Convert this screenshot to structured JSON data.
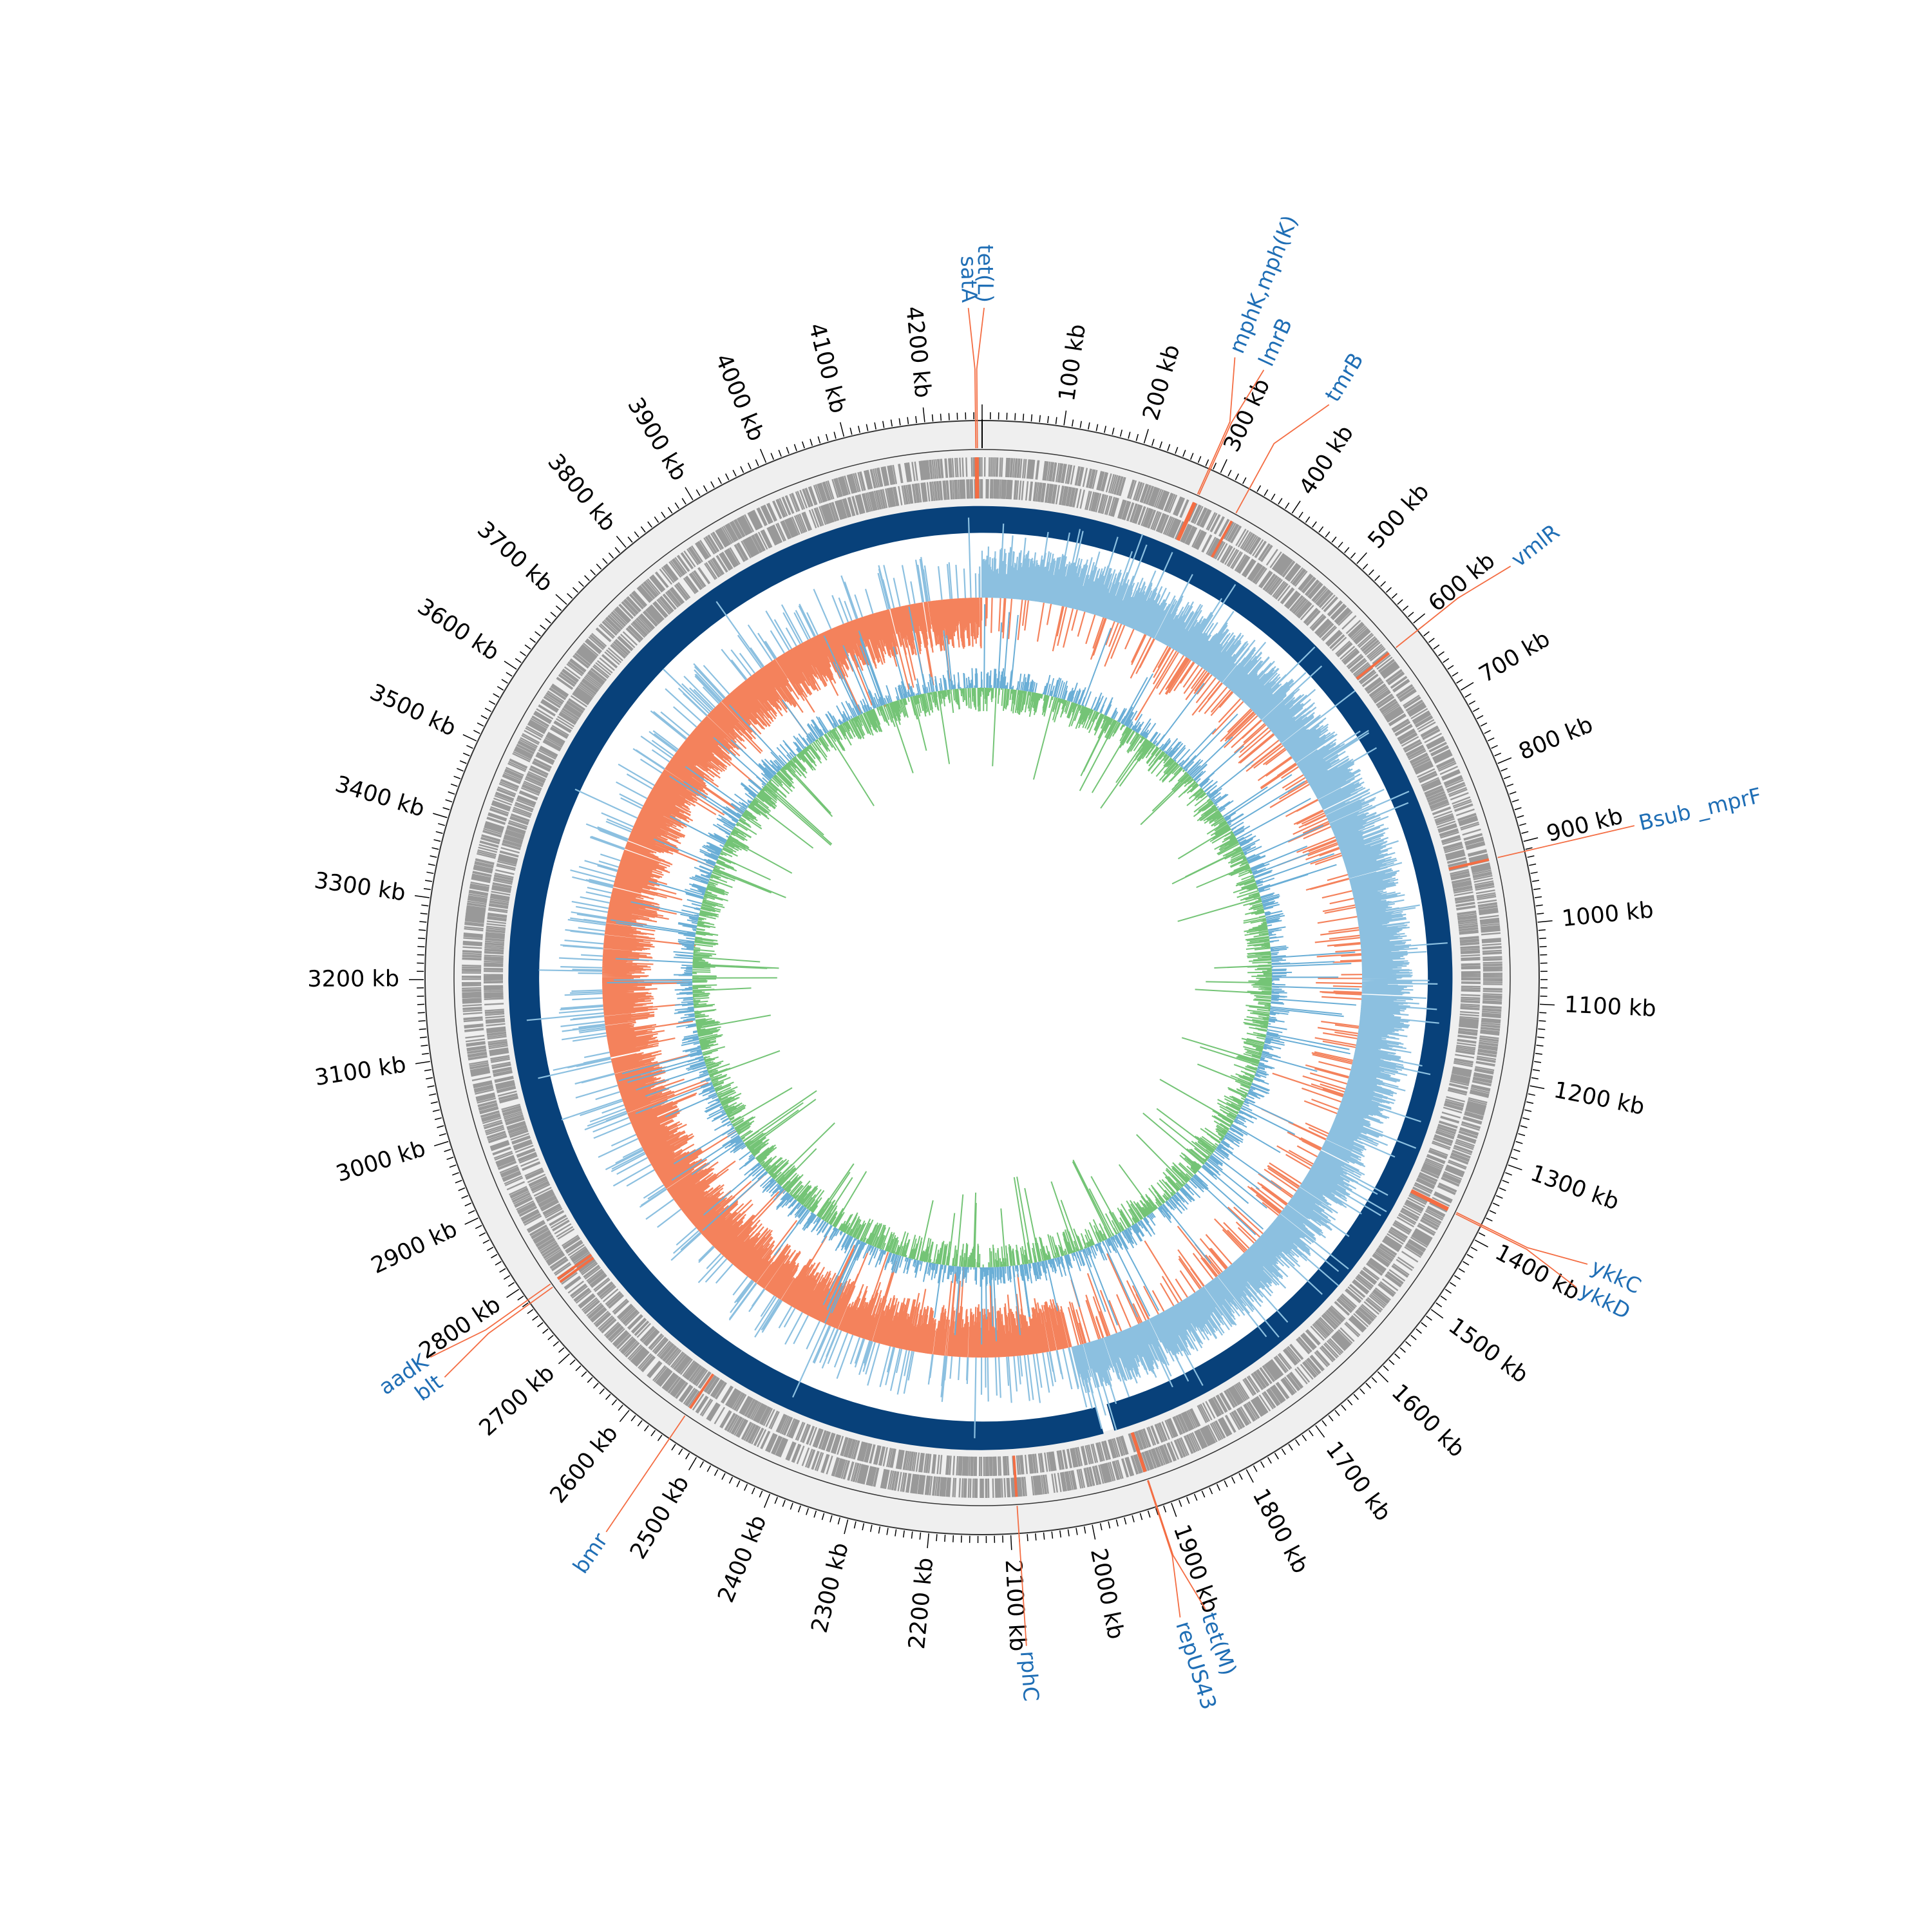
{
  "genome": {
    "length_kb": 4270,
    "tick_unit": "kb",
    "major_tick_step_kb": 100,
    "minor_tick_step_kb": 10,
    "tick_labels": [
      "100 kb",
      "200 kb",
      "300 kb",
      "400 kb",
      "500 kb",
      "600 kb",
      "700 kb",
      "800 kb",
      "900 kb",
      "1000 kb",
      "1100 kb",
      "1200 kb",
      "1300 kb",
      "1400 kb",
      "1500 kb",
      "1600 kb",
      "1700 kb",
      "1800 kb",
      "1900 kb",
      "2000 kb",
      "2100 kb",
      "2200 kb",
      "2300 kb",
      "2400 kb",
      "2500 kb",
      "2600 kb",
      "2700 kb",
      "2800 kb",
      "2900 kb",
      "3000 kb",
      "3100 kb",
      "3200 kb",
      "3300 kb",
      "3400 kb",
      "3500 kb",
      "3600 kb",
      "3700 kb",
      "3800 kb",
      "3900 kb",
      "4000 kb",
      "4100 kb",
      "4200 kb"
    ]
  },
  "resistance_genes": [
    {
      "name": "tet(L)",
      "position_kb": 4264
    },
    {
      "name": "satA",
      "position_kb": 4262
    },
    {
      "name": "mphK,mph(K)",
      "position_kb": 285
    },
    {
      "name": "lmrB",
      "position_kb": 287
    },
    {
      "name": "tmrB",
      "position_kb": 340
    },
    {
      "name": "vmlR",
      "position_kb": 610
    },
    {
      "name": "Bsub _mprF",
      "position_kb": 912
    },
    {
      "name": "ykkC",
      "position_kb": 1380
    },
    {
      "name": "ykkD",
      "position_kb": 1382
    },
    {
      "name": "tet(M)",
      "position_kb": 1918
    },
    {
      "name": "repUS43",
      "position_kb": 1919
    },
    {
      "name": "rphC",
      "position_kb": 2090
    },
    {
      "name": "bmr",
      "position_kb": 2540
    },
    {
      "name": "blt",
      "position_kb": 2778
    },
    {
      "name": "aadK",
      "position_kb": 2783
    }
  ],
  "tracks": [
    {
      "name": "cds",
      "color": "#999999",
      "highlight_color": "#f46d43"
    },
    {
      "name": "contig",
      "color": "#08417a",
      "gap_at_kb": 1950
    },
    {
      "name": "gc_skew",
      "positive_color": "#8cc0e0",
      "negative_color": "#f4825c"
    },
    {
      "name": "gc_content",
      "above_color": "#6aaed6",
      "below_color": "#74c476"
    }
  ],
  "colors": {
    "label_text": "#1f6eb5",
    "leader_line": "#f46d43",
    "tick_text": "#000000",
    "ring_background": "#efefef"
  }
}
